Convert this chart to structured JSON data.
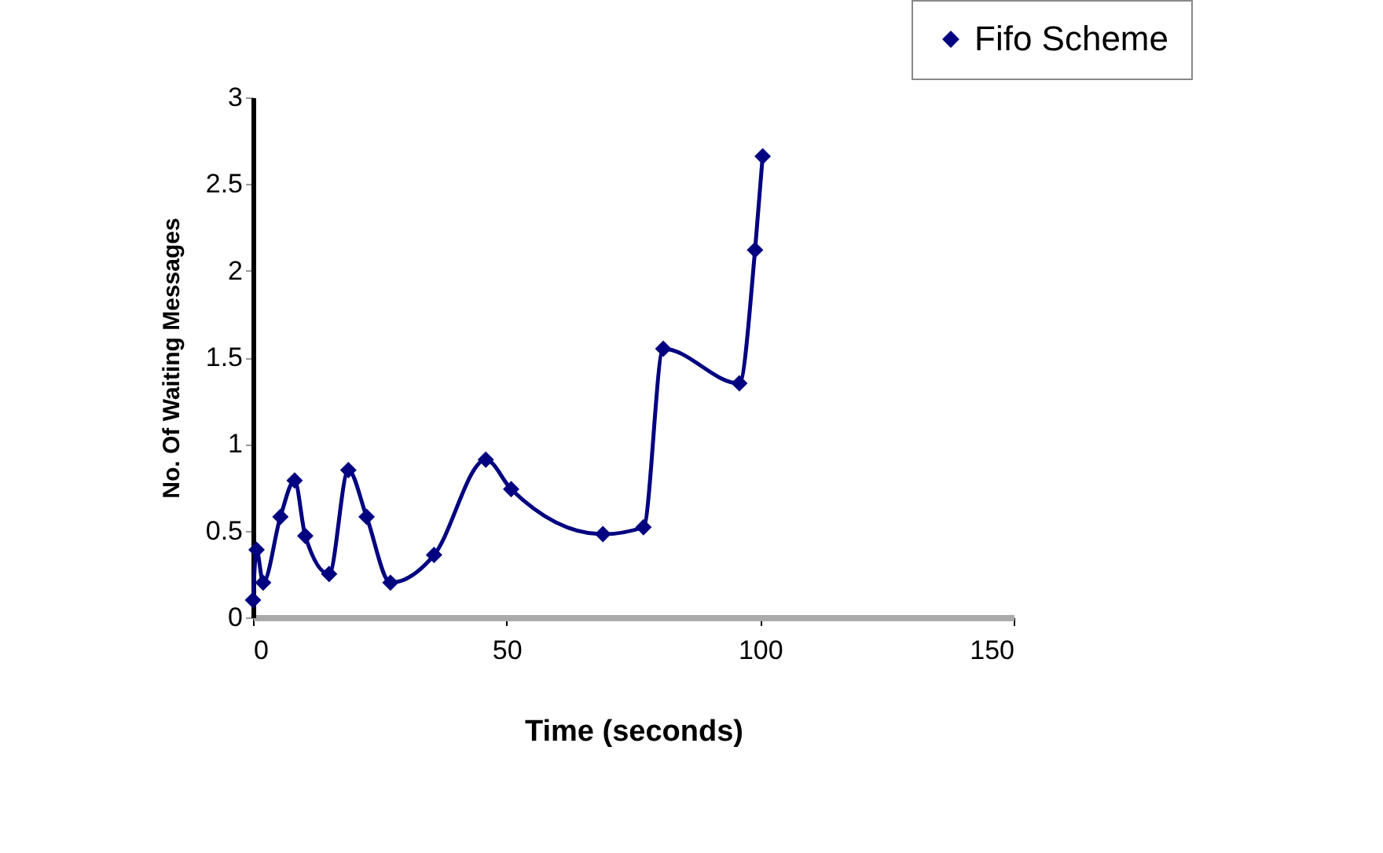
{
  "chart_data": {
    "type": "line",
    "xlabel": "Time (seconds)",
    "ylabel": "No. Of Waiting Messages",
    "x": [
      0,
      0.7,
      2.0,
      5.4,
      8.2,
      10.3,
      15.0,
      18.8,
      22.4,
      27.1,
      35.7,
      45.9,
      50.9,
      69.0,
      77.0,
      80.9,
      95.9,
      99.0,
      100.5
    ],
    "series": [
      {
        "name": "Fifo Scheme",
        "color": "#000080",
        "values": [
          0.1,
          0.39,
          0.2,
          0.58,
          0.79,
          0.47,
          0.25,
          0.85,
          0.58,
          0.2,
          0.36,
          0.91,
          0.74,
          0.48,
          0.52,
          1.55,
          1.35,
          2.12,
          2.66
        ]
      }
    ],
    "xlim": [
      0,
      150
    ],
    "xticks": [
      0,
      50,
      100,
      150
    ],
    "ylim": [
      0,
      3
    ],
    "yticks": [
      0,
      0.5,
      1,
      1.5,
      2,
      2.5,
      3
    ],
    "grid": false,
    "legend": "top right",
    "marker": "diamond",
    "line_style": "solid"
  }
}
